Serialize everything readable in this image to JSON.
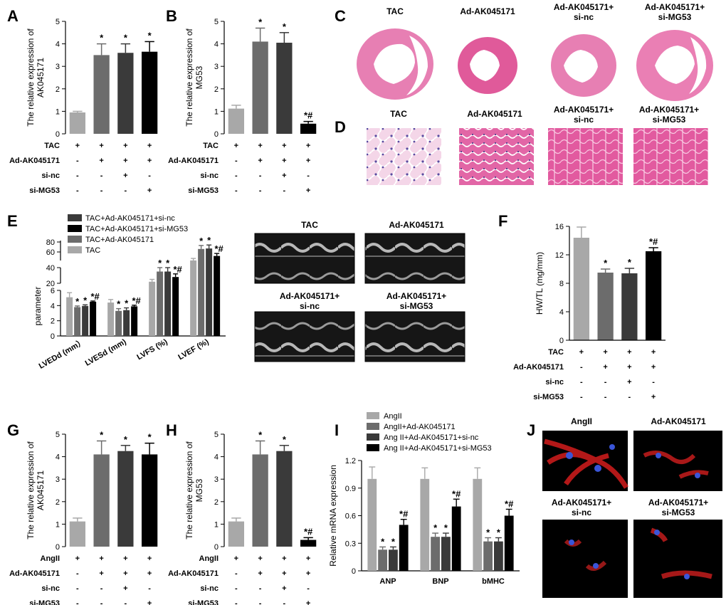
{
  "panels": {
    "A": "A",
    "B": "B",
    "C": "C",
    "D": "D",
    "E": "E",
    "F": "F",
    "G": "G",
    "H": "H",
    "I": "I",
    "J": "J"
  },
  "colors": {
    "c1": "#a8a8a8",
    "c2": "#6c6c6c",
    "c3": "#3a3a3a",
    "c4": "#000000",
    "tissue": "#e05a9a",
    "heart": "#ea7fb4"
  },
  "common": {
    "plus": "+",
    "minus": "-"
  },
  "imaging": {
    "C_titles": [
      "TAC",
      "Ad-AK045171",
      "Ad-AK045171+\nsi-nc",
      "Ad-AK045171+\nsi-MG53"
    ],
    "D_titles": [
      "TAC",
      "Ad-AK045171",
      "Ad-AK045171+\nsi-nc",
      "Ad-AK045171+\nsi-MG53"
    ],
    "E_titles": [
      "TAC",
      "Ad-AK045171",
      "Ad-AK045171+\nsi-nc",
      "Ad-AK045171+\nsi-MG53"
    ],
    "J_titles": [
      "AngII",
      "Ad-AK045171",
      "Ad-AK045171+\nsi-nc",
      "Ad-AK045171+\nsi-MG53"
    ]
  },
  "chart_data": [
    {
      "id": "A",
      "type": "bar",
      "ylabel": "The relative expression of\nAK045171",
      "ylim": [
        0,
        5
      ],
      "yticks": [
        0,
        1,
        2,
        3,
        4,
        5
      ],
      "values": [
        0.95,
        3.5,
        3.6,
        3.65
      ],
      "errors": [
        0.05,
        0.5,
        0.4,
        0.45
      ],
      "marks": [
        "",
        "*",
        "*",
        "*"
      ],
      "table": {
        "rows": [
          {
            "label": "TAC",
            "cells": [
              "+",
              "+",
              "+",
              "+"
            ]
          },
          {
            "label": "Ad-AK045171",
            "cells": [
              "-",
              "+",
              "+",
              "+"
            ]
          },
          {
            "label": "si-nc",
            "cells": [
              "-",
              "-",
              "+",
              "-"
            ]
          },
          {
            "label": "si-MG53",
            "cells": [
              "-",
              "-",
              "-",
              "+"
            ]
          }
        ]
      }
    },
    {
      "id": "B",
      "type": "bar",
      "ylabel": "The relative expression of\nMG53",
      "ylim": [
        0,
        5
      ],
      "yticks": [
        0,
        1,
        2,
        3,
        4,
        5
      ],
      "values": [
        1.12,
        4.1,
        4.05,
        0.45
      ],
      "errors": [
        0.15,
        0.6,
        0.45,
        0.1
      ],
      "marks": [
        "",
        "*",
        "*",
        "*#"
      ],
      "table": {
        "rows": [
          {
            "label": "TAC",
            "cells": [
              "+",
              "+",
              "+",
              "+"
            ]
          },
          {
            "label": "Ad-AK045171",
            "cells": [
              "-",
              "+",
              "+",
              "+"
            ]
          },
          {
            "label": "si-nc",
            "cells": [
              "-",
              "-",
              "+",
              "-"
            ]
          },
          {
            "label": "si-MG53",
            "cells": [
              "-",
              "-",
              "-",
              "+"
            ]
          }
        ]
      }
    },
    {
      "id": "E",
      "type": "bar",
      "ylabel": "parameter",
      "categories": [
        "LVEDd (mm）",
        "LVESd (mm)",
        "LVFS (%)",
        "LVEF (%)"
      ],
      "legend": [
        "TAC+Ad-AK045171+si-nc",
        "TAC+Ad-AK045171+si-MG53",
        "TAC+Ad-AK045171",
        "TAC"
      ],
      "axis_break": {
        "lower_ticks": [
          0,
          2,
          4,
          6
        ],
        "upper_ticks": [
          20,
          40,
          60,
          80
        ]
      },
      "series": [
        {
          "name": "TAC",
          "values": [
            5.1,
            4.4,
            22,
            43
          ],
          "errors": [
            0.6,
            0.4,
            3,
            4
          ],
          "marks": [
            "",
            "",
            "",
            ""
          ]
        },
        {
          "name": "TAC+Ad-AK045171",
          "values": [
            3.8,
            3.3,
            35,
            66
          ],
          "errors": [
            0.15,
            0.3,
            5,
            7
          ],
          "marks": [
            "*",
            "*",
            "*",
            "*"
          ]
        },
        {
          "name": "TAC+Ad-AK045171+si-nc",
          "values": [
            3.95,
            3.4,
            35,
            67
          ],
          "errors": [
            0.15,
            0.3,
            5,
            7
          ],
          "marks": [
            "*",
            "*",
            "*",
            "*"
          ]
        },
        {
          "name": "TAC+Ad-AK045171+si-MG53",
          "values": [
            4.5,
            3.9,
            28,
            52
          ],
          "errors": [
            0.1,
            0.15,
            4,
            5
          ],
          "marks": [
            "*#",
            "*#",
            "*#",
            "*#"
          ]
        }
      ]
    },
    {
      "id": "F",
      "type": "bar",
      "ylabel": "HW/TL (mg/mm)",
      "ylim": [
        0,
        16
      ],
      "yticks": [
        0,
        4,
        8,
        12,
        16
      ],
      "values": [
        14.4,
        9.5,
        9.4,
        12.5
      ],
      "errors": [
        1.5,
        0.5,
        0.7,
        0.5
      ],
      "marks": [
        "",
        "*",
        "*",
        "*#"
      ],
      "table": {
        "rows": [
          {
            "label": "TAC",
            "cells": [
              "+",
              "+",
              "+",
              "+"
            ]
          },
          {
            "label": "Ad-AK045171",
            "cells": [
              "-",
              "+",
              "+",
              "+"
            ]
          },
          {
            "label": "si-nc",
            "cells": [
              "-",
              "-",
              "+",
              "-"
            ]
          },
          {
            "label": "si-MG53",
            "cells": [
              "-",
              "-",
              "-",
              "+"
            ]
          }
        ]
      }
    },
    {
      "id": "G",
      "type": "bar",
      "ylabel": "The relative expression of\nAK045171",
      "ylim": [
        0,
        5
      ],
      "yticks": [
        0,
        1,
        2,
        3,
        4,
        5
      ],
      "values": [
        1.12,
        4.1,
        4.25,
        4.1
      ],
      "errors": [
        0.15,
        0.6,
        0.25,
        0.5
      ],
      "marks": [
        "",
        "*",
        "*",
        "*"
      ],
      "table": {
        "rows": [
          {
            "label": "AngII",
            "cells": [
              "+",
              "+",
              "+",
              "+"
            ]
          },
          {
            "label": "Ad-AK045171",
            "cells": [
              "-",
              "+",
              "+",
              "+"
            ]
          },
          {
            "label": "si-nc",
            "cells": [
              "-",
              "-",
              "+",
              "-"
            ]
          },
          {
            "label": "si-MG53",
            "cells": [
              "-",
              "-",
              "-",
              "+"
            ]
          }
        ]
      }
    },
    {
      "id": "H",
      "type": "bar",
      "ylabel": "The relative expression of\nMG53",
      "ylim": [
        0,
        5
      ],
      "yticks": [
        0,
        1,
        2,
        3,
        4,
        5
      ],
      "values": [
        1.12,
        4.1,
        4.25,
        0.3
      ],
      "errors": [
        0.15,
        0.6,
        0.25,
        0.1
      ],
      "marks": [
        "",
        "*",
        "*",
        "*#"
      ],
      "table": {
        "rows": [
          {
            "label": "AngII",
            "cells": [
              "+",
              "+",
              "+",
              "+"
            ]
          },
          {
            "label": "Ad-AK045171",
            "cells": [
              "-",
              "+",
              "+",
              "+"
            ]
          },
          {
            "label": "si-nc",
            "cells": [
              "-",
              "-",
              "+",
              "-"
            ]
          },
          {
            "label": "si-MG53",
            "cells": [
              "-",
              "-",
              "-",
              "+"
            ]
          }
        ]
      }
    },
    {
      "id": "I",
      "type": "bar",
      "ylabel": "Relative mRNA expression",
      "ylim": [
        0,
        1.2
      ],
      "yticks": [
        0,
        0.3,
        0.6,
        0.9,
        1.2
      ],
      "categories": [
        "ANP",
        "BNP",
        "bMHC"
      ],
      "legend": [
        "AngII",
        "AngII+Ad-AK045171",
        "Ang II+Ad-AK045171+si-nc",
        "Ang II+Ad-AK045171+si-MG53"
      ],
      "series": [
        {
          "name": "AngII",
          "values": [
            1.0,
            1.0,
            1.0
          ],
          "errors": [
            0.13,
            0.12,
            0.12
          ],
          "marks": [
            "",
            "",
            ""
          ]
        },
        {
          "name": "AngII+Ad-AK045171",
          "values": [
            0.23,
            0.37,
            0.32
          ],
          "errors": [
            0.03,
            0.04,
            0.04
          ],
          "marks": [
            "*",
            "*",
            "*"
          ]
        },
        {
          "name": "Ang II+Ad-AK045171+si-nc",
          "values": [
            0.23,
            0.37,
            0.32
          ],
          "errors": [
            0.03,
            0.04,
            0.04
          ],
          "marks": [
            "*",
            "*",
            "*"
          ]
        },
        {
          "name": "Ang II+Ad-AK045171+si-MG53",
          "values": [
            0.5,
            0.7,
            0.6
          ],
          "errors": [
            0.06,
            0.08,
            0.07
          ],
          "marks": [
            "*#",
            "*#",
            "*#"
          ]
        }
      ]
    }
  ]
}
